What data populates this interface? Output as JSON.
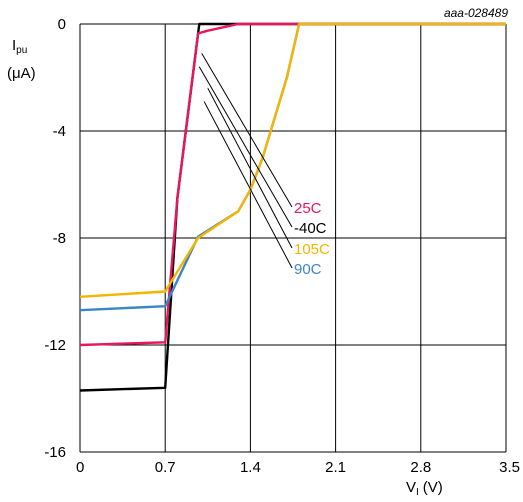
{
  "chart_data": {
    "type": "line",
    "reference": "aaa-028489",
    "ylabel_main": "I",
    "ylabel_sub": "pu",
    "ylabel_unit": "(μA)",
    "xlabel_main": "V",
    "xlabel_sub": "I",
    "xlabel_unit": "(V)",
    "xlim": [
      0,
      3.5
    ],
    "ylim": [
      -16,
      0
    ],
    "xticks": [
      0,
      0.7,
      1.4,
      2.1,
      2.8,
      3.5
    ],
    "xtick_labels": [
      "0",
      "0.7",
      "1.4",
      "2.1",
      "2.8",
      "3.5"
    ],
    "yticks": [
      0,
      -4,
      -8,
      -12,
      -16
    ],
    "ytick_labels": [
      "0",
      "-4",
      "-8",
      "-12",
      "-16"
    ],
    "grid": true,
    "legend": "annotated labels with leader lines",
    "series": [
      {
        "name": "25C",
        "color": "#e8175d",
        "x": [
          0,
          0.7,
          0.8,
          0.97,
          1.05,
          1.3,
          3.5
        ],
        "y": [
          -12.0,
          -11.9,
          -6.5,
          -0.35,
          -0.25,
          0,
          0
        ]
      },
      {
        "name": "-40C",
        "color": "#000000",
        "x": [
          0,
          0.7,
          0.8,
          0.98,
          1.05,
          1.3,
          3.5
        ],
        "y": [
          -13.7,
          -13.6,
          -6.5,
          0,
          0,
          0,
          0
        ]
      },
      {
        "name": "105C",
        "color": "#f5b400",
        "x": [
          0,
          0.7,
          0.97,
          1.3,
          1.4,
          1.5,
          1.7,
          1.8,
          3.5
        ],
        "y": [
          -10.2,
          -10.0,
          -8.0,
          -7.0,
          -6.2,
          -5.0,
          -2.0,
          0,
          0
        ]
      },
      {
        "name": "90C",
        "color": "#3a86c8",
        "x": [
          0,
          0.7,
          0.97,
          1.3,
          1.4,
          1.5,
          1.7,
          1.8,
          3.5
        ],
        "y": [
          -10.7,
          -10.55,
          -7.95,
          -7.0,
          -6.2,
          -5.0,
          -2.0,
          0,
          0
        ]
      }
    ]
  }
}
